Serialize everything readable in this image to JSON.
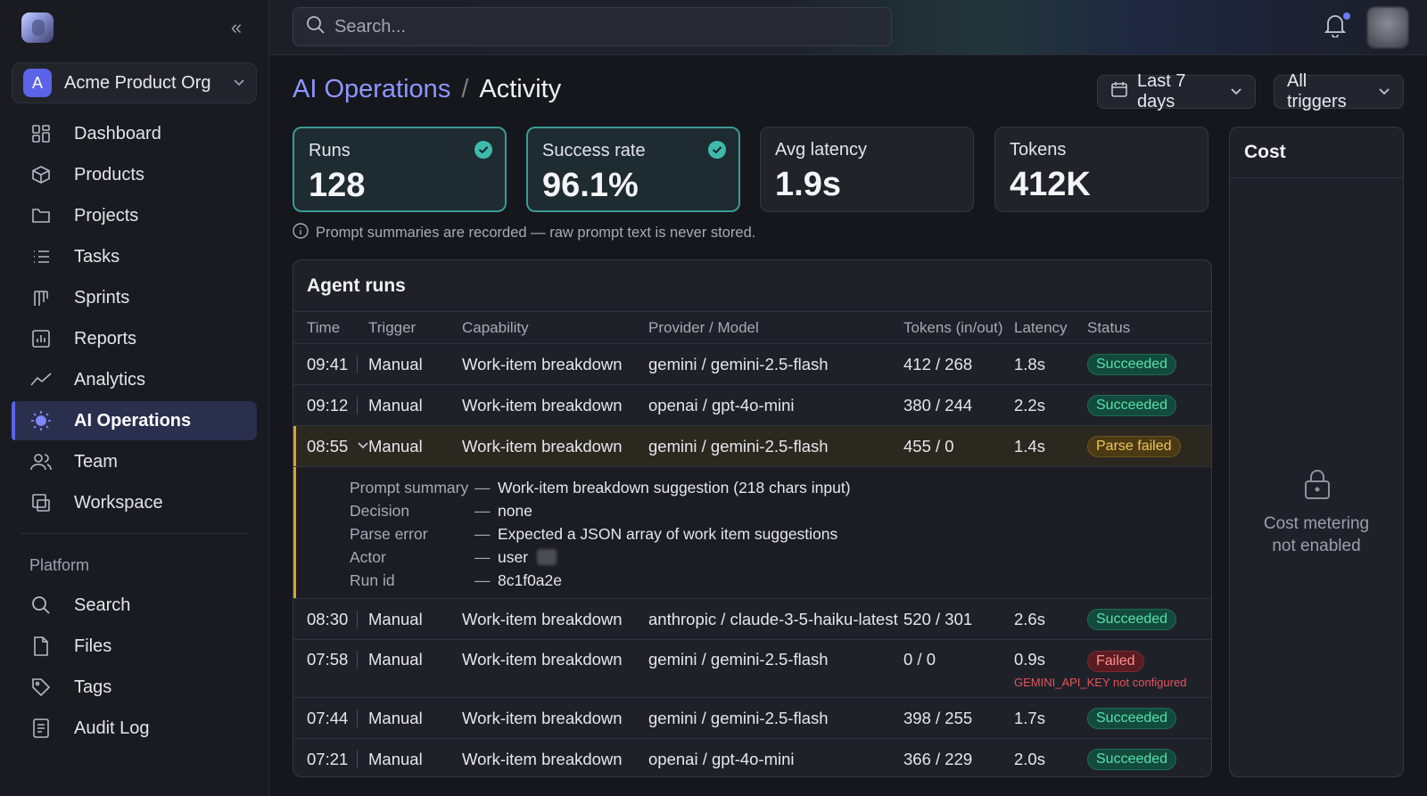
{
  "org": {
    "initial": "A",
    "name": "Acme Product Org"
  },
  "nav": {
    "items": [
      {
        "label": "Dashboard",
        "icon": "dashboard-icon"
      },
      {
        "label": "Products",
        "icon": "cube-icon"
      },
      {
        "label": "Projects",
        "icon": "folder-icon"
      },
      {
        "label": "Tasks",
        "icon": "list-icon"
      },
      {
        "label": "Sprints",
        "icon": "sprint-icon"
      },
      {
        "label": "Reports",
        "icon": "report-icon"
      },
      {
        "label": "Analytics",
        "icon": "analytics-icon"
      },
      {
        "label": "AI Operations",
        "icon": "ai-sparkle-icon"
      },
      {
        "label": "Team",
        "icon": "team-icon"
      },
      {
        "label": "Workspace",
        "icon": "workspace-icon"
      }
    ],
    "section_label": "Platform",
    "platform_items": [
      {
        "label": "Search",
        "icon": "search-icon"
      },
      {
        "label": "Files",
        "icon": "file-icon"
      },
      {
        "label": "Tags",
        "icon": "tag-icon"
      },
      {
        "label": "Audit Log",
        "icon": "audit-log-icon"
      }
    ],
    "active": "AI Operations"
  },
  "search": {
    "placeholder": "Search..."
  },
  "header": {
    "parent": "AI Operations",
    "separator": "/",
    "current": "Activity"
  },
  "filters": {
    "range": "Last 7 days",
    "trigger": "All triggers"
  },
  "stats": [
    {
      "label": "Runs",
      "value": "128",
      "check": true
    },
    {
      "label": "Success rate",
      "value": "96.1%",
      "check": true
    },
    {
      "label": "Avg latency",
      "value": "1.9s",
      "check": false
    },
    {
      "label": "Tokens",
      "value": "412K",
      "check": false
    }
  ],
  "note": "Prompt summaries are recorded — raw prompt text is never stored.",
  "cost": {
    "title": "Cost",
    "message_line1": "Cost metering",
    "message_line2": "not enabled"
  },
  "runs": {
    "title": "Agent runs",
    "columns": [
      "Time",
      "Trigger",
      "Capability",
      "Provider / Model",
      "Tokens (in/out)",
      "Latency",
      "Status"
    ],
    "rows": [
      {
        "time": "09:41",
        "trigger": "Manual",
        "capability": "Work-item breakdown",
        "model": "gemini / gemini-2.5-flash",
        "tokens": "412 / 268",
        "latency": "1.8s",
        "status": "Succeeded"
      },
      {
        "time": "09:12",
        "trigger": "Manual",
        "capability": "Work-item breakdown",
        "model": "openai / gpt-4o-mini",
        "tokens": "380 / 244",
        "latency": "2.2s",
        "status": "Succeeded"
      },
      {
        "time": "08:55",
        "trigger": "Manual",
        "capability": "Work-item breakdown",
        "model": "gemini / gemini-2.5-flash",
        "tokens": "455 / 0",
        "latency": "1.4s",
        "status": "Parse failed"
      },
      {
        "time": "08:30",
        "trigger": "Manual",
        "capability": "Work-item breakdown",
        "model": "anthropic / claude-3-5-haiku-latest",
        "tokens": "520 / 301",
        "latency": "2.6s",
        "status": "Succeeded"
      },
      {
        "time": "07:58",
        "trigger": "Manual",
        "capability": "Work-item breakdown",
        "model": "gemini / gemini-2.5-flash",
        "tokens": "0 / 0",
        "latency": "0.9s",
        "status": "Failed",
        "error": "GEMINI_API_KEY not configured"
      },
      {
        "time": "07:44",
        "trigger": "Manual",
        "capability": "Work-item breakdown",
        "model": "gemini / gemini-2.5-flash",
        "tokens": "398 / 255",
        "latency": "1.7s",
        "status": "Succeeded"
      },
      {
        "time": "07:21",
        "trigger": "Manual",
        "capability": "Work-item breakdown",
        "model": "openai / gpt-4o-mini",
        "tokens": "366 / 229",
        "latency": "2.0s",
        "status": "Succeeded"
      }
    ],
    "detail": {
      "dash": "—",
      "fields": [
        {
          "key": "Prompt summary",
          "value": "Work-item breakdown suggestion (218 chars input)"
        },
        {
          "key": "Decision",
          "value": "none"
        },
        {
          "key": "Parse error",
          "value": "Expected a JSON array of work item suggestions"
        },
        {
          "key": "Actor",
          "value": "user"
        },
        {
          "key": "Run id",
          "value": "8c1f0a2e"
        }
      ]
    }
  },
  "colors": {
    "accent": "#5b63e8",
    "success": "#57e0ad",
    "warning": "#f0c45a",
    "danger": "#ff8f8f",
    "highlight_border": "#3a9a95"
  }
}
